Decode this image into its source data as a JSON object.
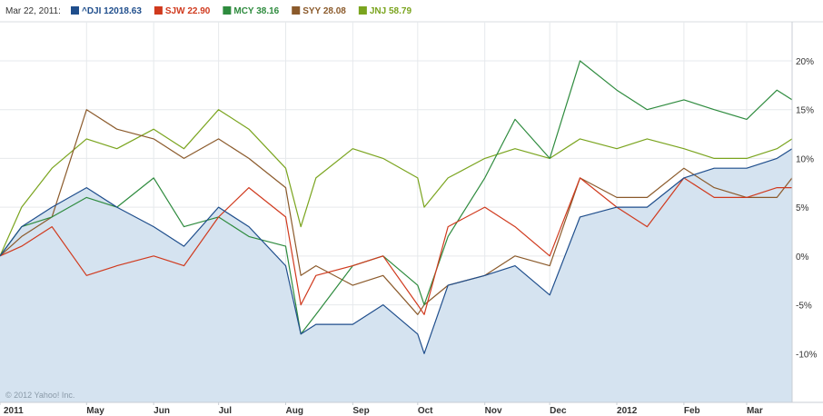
{
  "legend": {
    "date": "Mar 22, 2011:",
    "items": [
      {
        "label": "^DJI 12018.63",
        "color": "#1f4e8c"
      },
      {
        "label": "SJW 22.90",
        "color": "#d03a1e"
      },
      {
        "label": "MCY 38.16",
        "color": "#2e8b3e"
      },
      {
        "label": "SYY 28.08",
        "color": "#8b5a2b"
      },
      {
        "label": "JNJ 58.79",
        "color": "#7aa41e"
      }
    ]
  },
  "copyright": "© 2012 Yahoo! Inc.",
  "chart_data": {
    "type": "line",
    "ylim": [
      -15,
      24
    ],
    "y_ticks": [
      20,
      15,
      10,
      5,
      0,
      -5,
      -10
    ],
    "y_tick_labels": [
      "20%",
      "15%",
      "10%",
      "5%",
      "0%",
      "-5%",
      "-10%"
    ],
    "x_ticks": [
      {
        "label": "2011",
        "x": "2011-03-22"
      },
      {
        "label": "May",
        "x": "2011-05-01"
      },
      {
        "label": "Jun",
        "x": "2011-06-01"
      },
      {
        "label": "Jul",
        "x": "2011-07-01"
      },
      {
        "label": "Aug",
        "x": "2011-08-01"
      },
      {
        "label": "Sep",
        "x": "2011-09-01"
      },
      {
        "label": "Oct",
        "x": "2011-10-01"
      },
      {
        "label": "Nov",
        "x": "2011-11-01"
      },
      {
        "label": "Dec",
        "x": "2011-12-01"
      },
      {
        "label": "2012",
        "x": "2012-01-01"
      },
      {
        "label": "Feb",
        "x": "2012-02-01"
      },
      {
        "label": "Mar",
        "x": "2012-03-01"
      }
    ],
    "xlim": [
      "2011-03-22",
      "2012-03-22"
    ],
    "x": [
      "2011-03-22",
      "2011-04-01",
      "2011-04-15",
      "2011-05-01",
      "2011-05-15",
      "2011-06-01",
      "2011-06-15",
      "2011-07-01",
      "2011-07-15",
      "2011-08-01",
      "2011-08-08",
      "2011-08-15",
      "2011-09-01",
      "2011-09-15",
      "2011-10-01",
      "2011-10-04",
      "2011-10-15",
      "2011-11-01",
      "2011-11-15",
      "2011-12-01",
      "2011-12-15",
      "2012-01-01",
      "2012-01-15",
      "2012-02-01",
      "2012-02-15",
      "2012-03-01",
      "2012-03-15",
      "2012-03-22"
    ],
    "series": [
      {
        "name": "^DJI",
        "color": "#1f4e8c",
        "fill": true,
        "values": [
          0,
          3,
          5,
          7,
          5,
          3,
          1,
          5,
          3,
          -1,
          -8,
          -7,
          -7,
          -5,
          -8,
          -10,
          -3,
          -2,
          -1,
          -4,
          4,
          5,
          5,
          8,
          9,
          9,
          10,
          11
        ]
      },
      {
        "name": "SJW",
        "color": "#d03a1e",
        "values": [
          0,
          1,
          3,
          -2,
          -1,
          0,
          -1,
          4,
          7,
          4,
          -5,
          -2,
          -1,
          0,
          -5,
          -6,
          3,
          5,
          3,
          0,
          8,
          5,
          3,
          8,
          6,
          6,
          7,
          7
        ]
      },
      {
        "name": "MCY",
        "color": "#2e8b3e",
        "values": [
          0,
          3,
          4,
          6,
          5,
          8,
          3,
          4,
          2,
          1,
          -8,
          -6,
          -1,
          0,
          -3,
          -5,
          2,
          8,
          14,
          10,
          20,
          17,
          15,
          16,
          15,
          14,
          17,
          16
        ]
      },
      {
        "name": "SYY",
        "color": "#8b5a2b",
        "values": [
          0,
          2,
          4,
          15,
          13,
          12,
          10,
          12,
          10,
          7,
          -2,
          -1,
          -3,
          -2,
          -6,
          -5,
          -3,
          -2,
          0,
          -1,
          8,
          6,
          6,
          9,
          7,
          6,
          6,
          8
        ]
      },
      {
        "name": "JNJ",
        "color": "#7aa41e",
        "values": [
          0,
          5,
          9,
          12,
          11,
          13,
          11,
          15,
          13,
          9,
          3,
          8,
          11,
          10,
          8,
          5,
          8,
          10,
          11,
          10,
          12,
          11,
          12,
          11,
          10,
          10,
          11,
          12
        ]
      }
    ]
  }
}
